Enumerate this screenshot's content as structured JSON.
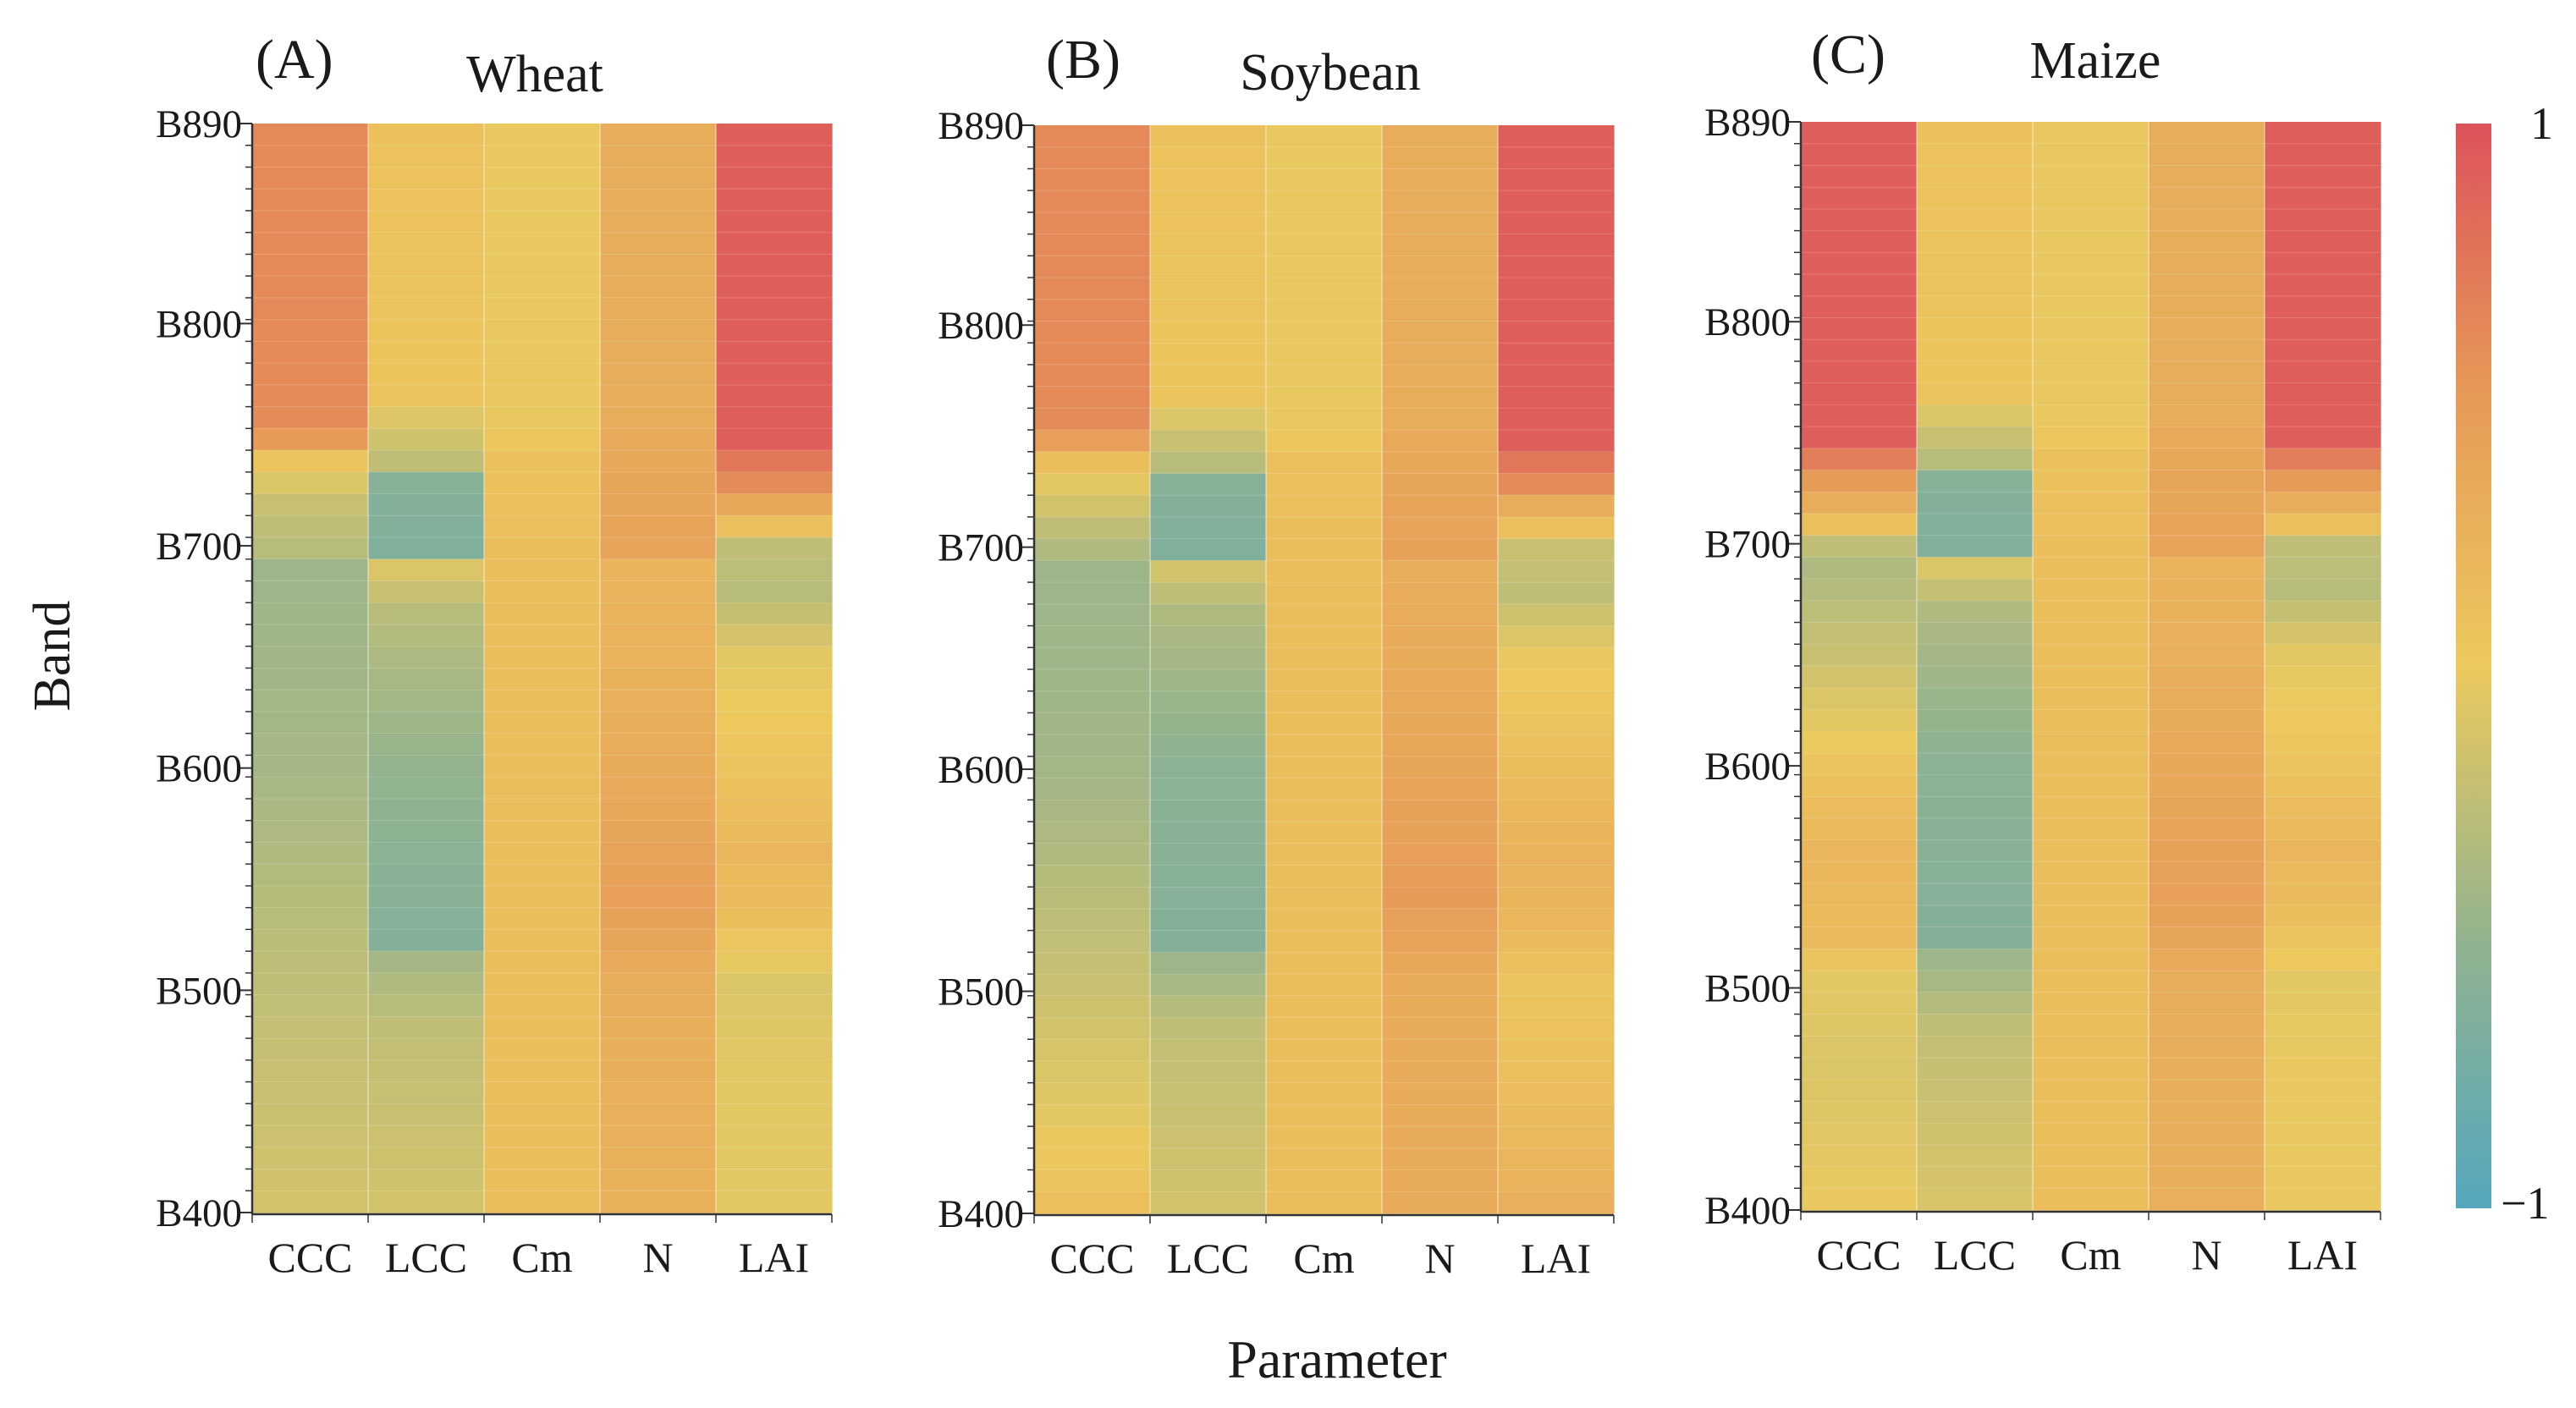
{
  "figure": {
    "ylabel": "Band",
    "xlabel": "Parameter",
    "colorbar": {
      "max_label": "1",
      "min_label": "−1",
      "range": [
        -1,
        1
      ]
    }
  },
  "colors": {
    "low": "#54a7bd",
    "mid": "#ecc95d",
    "high": "#dc525a"
  },
  "chart_data": [
    {
      "type": "heatmap",
      "panel_label": "(A)",
      "title": "Wheat",
      "xlabel": "Parameter",
      "ylabel": "Band",
      "x_categories": [
        "CCC",
        "LCC",
        "Cm",
        "N",
        "LAI"
      ],
      "y_tick_labels": [
        "B890",
        "B800",
        "B700",
        "B600",
        "B500",
        "B400"
      ],
      "y_range_nm": [
        400,
        890
      ],
      "band_step_nm": 10,
      "value_range": [
        -1,
        1
      ],
      "columns": {
        "CCC": [
          [
            890,
            0.62
          ],
          [
            760,
            0.6
          ],
          [
            750,
            0.48
          ],
          [
            740,
            0.05
          ],
          [
            730,
            -0.1
          ],
          [
            720,
            -0.2
          ],
          [
            700,
            -0.3
          ],
          [
            690,
            -0.45
          ],
          [
            600,
            -0.4
          ],
          [
            500,
            -0.25
          ],
          [
            400,
            -0.15
          ]
        ],
        "LCC": [
          [
            890,
            0.08
          ],
          [
            770,
            0.05
          ],
          [
            760,
            -0.08
          ],
          [
            740,
            -0.25
          ],
          [
            730,
            -0.6
          ],
          [
            700,
            -0.65
          ],
          [
            690,
            -0.1
          ],
          [
            670,
            -0.3
          ],
          [
            600,
            -0.5
          ],
          [
            520,
            -0.62
          ],
          [
            510,
            -0.4
          ],
          [
            480,
            -0.25
          ],
          [
            400,
            -0.15
          ]
        ],
        "Cm": [
          [
            890,
            -0.02
          ],
          [
            760,
            -0.02
          ],
          [
            740,
            0.08
          ],
          [
            700,
            0.12
          ],
          [
            400,
            0.12
          ]
        ],
        "N": [
          [
            890,
            0.3
          ],
          [
            760,
            0.3
          ],
          [
            740,
            0.35
          ],
          [
            730,
            0.38
          ],
          [
            700,
            0.4
          ],
          [
            690,
            0.22
          ],
          [
            650,
            0.25
          ],
          [
            600,
            0.32
          ],
          [
            540,
            0.45
          ],
          [
            520,
            0.38
          ],
          [
            500,
            0.3
          ],
          [
            400,
            0.26
          ]
        ],
        "LAI": [
          [
            890,
            0.92
          ],
          [
            750,
            0.92
          ],
          [
            740,
            0.75
          ],
          [
            730,
            0.6
          ],
          [
            720,
            0.35
          ],
          [
            710,
            0.1
          ],
          [
            700,
            -0.25
          ],
          [
            680,
            -0.3
          ],
          [
            650,
            -0.05
          ],
          [
            600,
            0.05
          ],
          [
            560,
            0.2
          ],
          [
            530,
            0.12
          ],
          [
            500,
            -0.1
          ],
          [
            460,
            -0.05
          ],
          [
            400,
            -0.05
          ]
        ]
      }
    },
    {
      "type": "heatmap",
      "panel_label": "(B)",
      "title": "Soybean",
      "xlabel": "Parameter",
      "ylabel": "Band",
      "x_categories": [
        "CCC",
        "LCC",
        "Cm",
        "N",
        "LAI"
      ],
      "y_tick_labels": [
        "B890",
        "B800",
        "B700",
        "B600",
        "B500",
        "B400"
      ],
      "y_range_nm": [
        400,
        890
      ],
      "band_step_nm": 10,
      "value_range": [
        -1,
        1
      ],
      "columns": {
        "CCC": [
          [
            890,
            0.62
          ],
          [
            760,
            0.6
          ],
          [
            750,
            0.45
          ],
          [
            740,
            0.12
          ],
          [
            730,
            -0.05
          ],
          [
            720,
            -0.15
          ],
          [
            700,
            -0.35
          ],
          [
            690,
            -0.45
          ],
          [
            600,
            -0.42
          ],
          [
            500,
            -0.2
          ],
          [
            440,
            -0.05
          ],
          [
            400,
            0.1
          ]
        ],
        "LCC": [
          [
            890,
            0.08
          ],
          [
            770,
            0.05
          ],
          [
            760,
            -0.1
          ],
          [
            740,
            -0.3
          ],
          [
            730,
            -0.6
          ],
          [
            700,
            -0.65
          ],
          [
            690,
            -0.15
          ],
          [
            670,
            -0.35
          ],
          [
            600,
            -0.55
          ],
          [
            520,
            -0.62
          ],
          [
            510,
            -0.45
          ],
          [
            480,
            -0.25
          ],
          [
            400,
            -0.15
          ]
        ],
        "Cm": [
          [
            890,
            -0.02
          ],
          [
            760,
            -0.02
          ],
          [
            740,
            0.1
          ],
          [
            700,
            0.12
          ],
          [
            400,
            0.12
          ]
        ],
        "N": [
          [
            890,
            0.3
          ],
          [
            760,
            0.3
          ],
          [
            740,
            0.35
          ],
          [
            730,
            0.38
          ],
          [
            700,
            0.42
          ],
          [
            690,
            0.3
          ],
          [
            650,
            0.32
          ],
          [
            600,
            0.38
          ],
          [
            540,
            0.48
          ],
          [
            520,
            0.4
          ],
          [
            500,
            0.32
          ],
          [
            400,
            0.32
          ]
        ],
        "LAI": [
          [
            890,
            0.92
          ],
          [
            750,
            0.92
          ],
          [
            740,
            0.75
          ],
          [
            730,
            0.6
          ],
          [
            720,
            0.3
          ],
          [
            710,
            0.1
          ],
          [
            700,
            -0.2
          ],
          [
            680,
            -0.25
          ],
          [
            650,
            -0.02
          ],
          [
            600,
            0.12
          ],
          [
            560,
            0.25
          ],
          [
            530,
            0.2
          ],
          [
            500,
            0.05
          ],
          [
            460,
            0.1
          ],
          [
            420,
            0.2
          ],
          [
            400,
            0.28
          ]
        ]
      }
    },
    {
      "type": "heatmap",
      "panel_label": "(C)",
      "title": "Maize",
      "xlabel": "Parameter",
      "ylabel": "Band",
      "x_categories": [
        "CCC",
        "LCC",
        "Cm",
        "N",
        "LAI"
      ],
      "y_tick_labels": [
        "B890",
        "B800",
        "B700",
        "B600",
        "B500",
        "B400"
      ],
      "y_range_nm": [
        400,
        890
      ],
      "band_step_nm": 10,
      "value_range": [
        -1,
        1
      ],
      "columns": {
        "CCC": [
          [
            890,
            0.92
          ],
          [
            750,
            0.92
          ],
          [
            740,
            0.7
          ],
          [
            730,
            0.5
          ],
          [
            720,
            0.3
          ],
          [
            710,
            0.1
          ],
          [
            700,
            -0.25
          ],
          [
            690,
            -0.35
          ],
          [
            650,
            -0.2
          ],
          [
            600,
            0.05
          ],
          [
            560,
            0.2
          ],
          [
            520,
            0.15
          ],
          [
            500,
            -0.05
          ],
          [
            460,
            -0.1
          ],
          [
            400,
            -0.02
          ]
        ],
        "LCC": [
          [
            890,
            0.08
          ],
          [
            770,
            0.05
          ],
          [
            760,
            -0.1
          ],
          [
            740,
            -0.3
          ],
          [
            730,
            -0.6
          ],
          [
            700,
            -0.65
          ],
          [
            690,
            -0.1
          ],
          [
            670,
            -0.35
          ],
          [
            600,
            -0.55
          ],
          [
            520,
            -0.62
          ],
          [
            510,
            -0.45
          ],
          [
            480,
            -0.25
          ],
          [
            400,
            -0.12
          ]
        ],
        "Cm": [
          [
            890,
            -0.02
          ],
          [
            760,
            -0.02
          ],
          [
            740,
            0.08
          ],
          [
            700,
            0.12
          ],
          [
            400,
            0.12
          ]
        ],
        "N": [
          [
            890,
            0.3
          ],
          [
            760,
            0.3
          ],
          [
            740,
            0.35
          ],
          [
            730,
            0.38
          ],
          [
            700,
            0.4
          ],
          [
            690,
            0.25
          ],
          [
            650,
            0.28
          ],
          [
            600,
            0.35
          ],
          [
            540,
            0.45
          ],
          [
            520,
            0.38
          ],
          [
            500,
            0.3
          ],
          [
            400,
            0.28
          ]
        ],
        "LAI": [
          [
            890,
            0.92
          ],
          [
            750,
            0.92
          ],
          [
            740,
            0.7
          ],
          [
            730,
            0.5
          ],
          [
            720,
            0.3
          ],
          [
            710,
            0.1
          ],
          [
            700,
            -0.25
          ],
          [
            680,
            -0.3
          ],
          [
            650,
            -0.05
          ],
          [
            600,
            0.05
          ],
          [
            560,
            0.2
          ],
          [
            530,
            0.12
          ],
          [
            500,
            -0.05
          ],
          [
            460,
            -0.02
          ],
          [
            400,
            -0.02
          ]
        ]
      }
    }
  ]
}
